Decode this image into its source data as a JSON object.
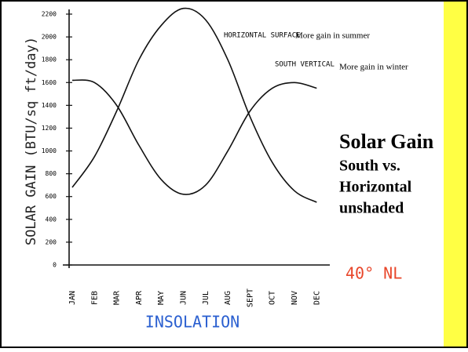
{
  "chart_data": {
    "type": "line",
    "title": "Solar Gain",
    "subtitle": [
      "South vs.",
      "Horizontal",
      "unshaded"
    ],
    "y_label": "SOLAR GAIN (BTU/sq ft/day)",
    "x_label": "INSOLATION",
    "annotations": [
      "More gain in summer",
      "More gain in winter",
      "40° NL"
    ],
    "categories": [
      "JAN",
      "FEB",
      "MAR",
      "APR",
      "MAY",
      "JUN",
      "JUL",
      "AUG",
      "SEPT",
      "OCT",
      "NOV",
      "DEC"
    ],
    "series": [
      {
        "name": "HORIZONTAL SURFACE",
        "color": "#111111",
        "values": [
          680,
          950,
          1350,
          1800,
          2100,
          2250,
          2150,
          1800,
          1300,
          900,
          650,
          550
        ]
      },
      {
        "name": "SOUTH VERTICAL",
        "color": "#111111",
        "values": [
          1620,
          1600,
          1400,
          1050,
          750,
          620,
          700,
          1000,
          1350,
          1550,
          1600,
          1550
        ]
      }
    ],
    "ylim": [
      0,
      2200
    ],
    "yticks": [
      0,
      200,
      400,
      600,
      800,
      1000,
      1200,
      1400,
      1600,
      1800,
      2000,
      2200
    ]
  }
}
